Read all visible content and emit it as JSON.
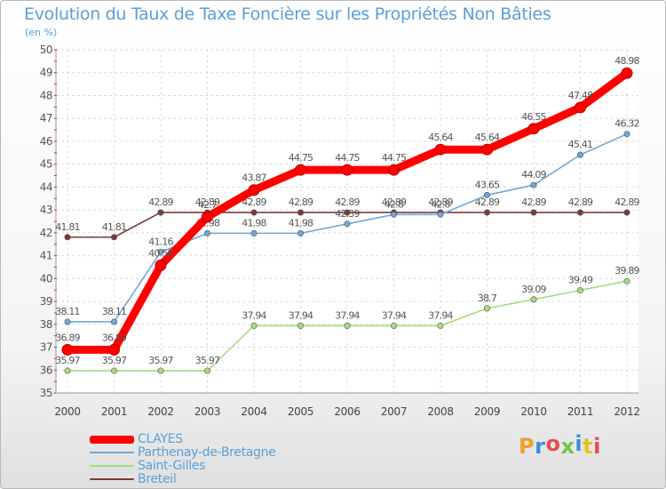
{
  "chart_data": {
    "type": "line",
    "title": "Evolution du Taux de Taxe Foncière sur les Propriétés Non Bâties",
    "subtitle": "(en %)",
    "x": [
      "2000",
      "2001",
      "2002",
      "2003",
      "2004",
      "2005",
      "2006",
      "2007",
      "2008",
      "2009",
      "2010",
      "2011",
      "2012"
    ],
    "ylim": [
      35,
      50
    ],
    "yticks": [
      "35",
      "36",
      "37",
      "38",
      "39",
      "40",
      "41",
      "42",
      "43",
      "44",
      "45",
      "46",
      "47",
      "48",
      "49",
      "50"
    ],
    "grid": true,
    "legend_position": "bottom-left",
    "series": [
      {
        "name": "CLAYES",
        "color": "#ff0000",
        "values": [
          36.89,
          36.89,
          40.58,
          42.7,
          43.87,
          44.75,
          44.75,
          44.75,
          45.64,
          45.64,
          46.55,
          47.48,
          48.98
        ],
        "labels": [
          "36.89",
          "36.89",
          "40.58",
          "42.7",
          "43.87",
          "44.75",
          "44.75",
          "44.75",
          "45.64",
          "45.64",
          "46.55",
          "47.48",
          "48.98"
        ]
      },
      {
        "name": "Parthenay-de-Bretagne",
        "color": "#6fa8dc",
        "values": [
          38.11,
          38.11,
          41.16,
          41.98,
          41.98,
          41.98,
          42.39,
          42.8,
          42.8,
          43.65,
          44.09,
          45.41,
          46.32
        ],
        "labels": [
          "38.11",
          "38.11",
          "41.16",
          "41.98",
          "41.98",
          "41.98",
          "42.39",
          "42.8",
          "42.8",
          "43.65",
          "44.09",
          "45.41",
          "46.32"
        ]
      },
      {
        "name": "Saint-Gilles",
        "color": "#a6dc80",
        "values": [
          35.97,
          35.97,
          35.97,
          35.97,
          37.94,
          37.94,
          37.94,
          37.94,
          37.94,
          38.7,
          39.09,
          39.49,
          39.89
        ],
        "labels": [
          "35.97",
          "35.97",
          "35.97",
          "35.97",
          "37.94",
          "37.94",
          "37.94",
          "37.94",
          "37.94",
          "38.7",
          "39.09",
          "39.49",
          "39.89"
        ]
      },
      {
        "name": "Breteil",
        "color": "#7a3a3a",
        "values": [
          41.81,
          41.81,
          42.89,
          42.89,
          42.89,
          42.89,
          42.89,
          42.89,
          42.89,
          42.89,
          42.89,
          42.89,
          42.89
        ],
        "labels": [
          "41.81",
          "41.81",
          "42.89",
          "42.89",
          "42.89",
          "42.89",
          "42.89",
          "42.89",
          "42.89",
          "42.89",
          "42.89",
          "42.89",
          "42.89"
        ]
      }
    ]
  },
  "logo": {
    "text": "Proxiti",
    "colors": [
      "#f0a030",
      "#3a8fd8",
      "#e05050",
      "#7ac142",
      "#3a8fd8",
      "#e8c020",
      "#e05050"
    ]
  }
}
